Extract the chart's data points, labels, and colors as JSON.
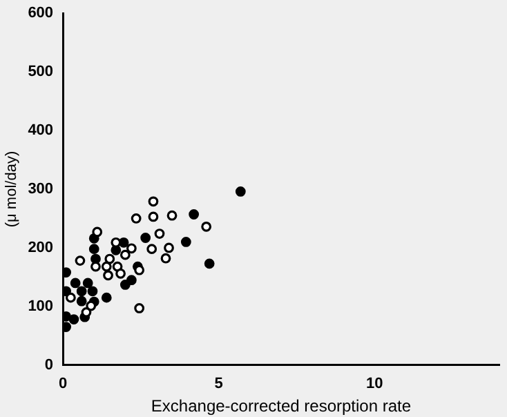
{
  "chart_data": {
    "type": "scatter",
    "xlabel": "Exchange-corrected resorption rate",
    "ylabel": "(μ mol/day)",
    "xlim": [
      0,
      14
    ],
    "xticks": [
      0,
      5,
      10
    ],
    "ylim": [
      0,
      600
    ],
    "yticks": [
      0,
      100,
      200,
      300,
      400,
      500,
      600
    ],
    "grid": false,
    "legend": false,
    "marker": "circle",
    "series": [
      {
        "color": "#000000",
        "x": [
          0.1,
          0.1,
          0.1,
          0.1,
          0.35,
          0.4,
          0.6,
          0.8,
          0.6,
          0.7,
          1.0,
          0.95,
          1.0,
          1.0,
          1.05,
          1.4,
          1.7,
          1.95,
          2.0,
          2.2,
          2.4,
          2.65,
          3.95,
          4.2,
          4.7,
          5.7
        ],
        "values": [
          158,
          126,
          83,
          65,
          78,
          140,
          126,
          140,
          109,
          82,
          108,
          126,
          216,
          198,
          181,
          115,
          196,
          209,
          137,
          145,
          168,
          217,
          210,
          257,
          173,
          296
        ]
      },
      {
        "color": "#000000",
        "x": [
          0.25,
          0.55,
          1.1,
          1.05,
          0.9,
          0.75,
          1.4,
          1.45,
          1.5,
          1.7,
          1.75,
          1.85,
          2.0,
          2.2,
          2.35,
          2.45,
          2.45,
          2.9,
          2.9,
          2.85,
          3.1,
          3.3,
          3.4,
          3.5,
          4.6
        ],
        "values": [
          115,
          178,
          227,
          168,
          101,
          90,
          168,
          153,
          181,
          209,
          168,
          156,
          188,
          199,
          250,
          162,
          97,
          279,
          253,
          198,
          224,
          182,
          200,
          255,
          236
        ]
      }
    ]
  }
}
